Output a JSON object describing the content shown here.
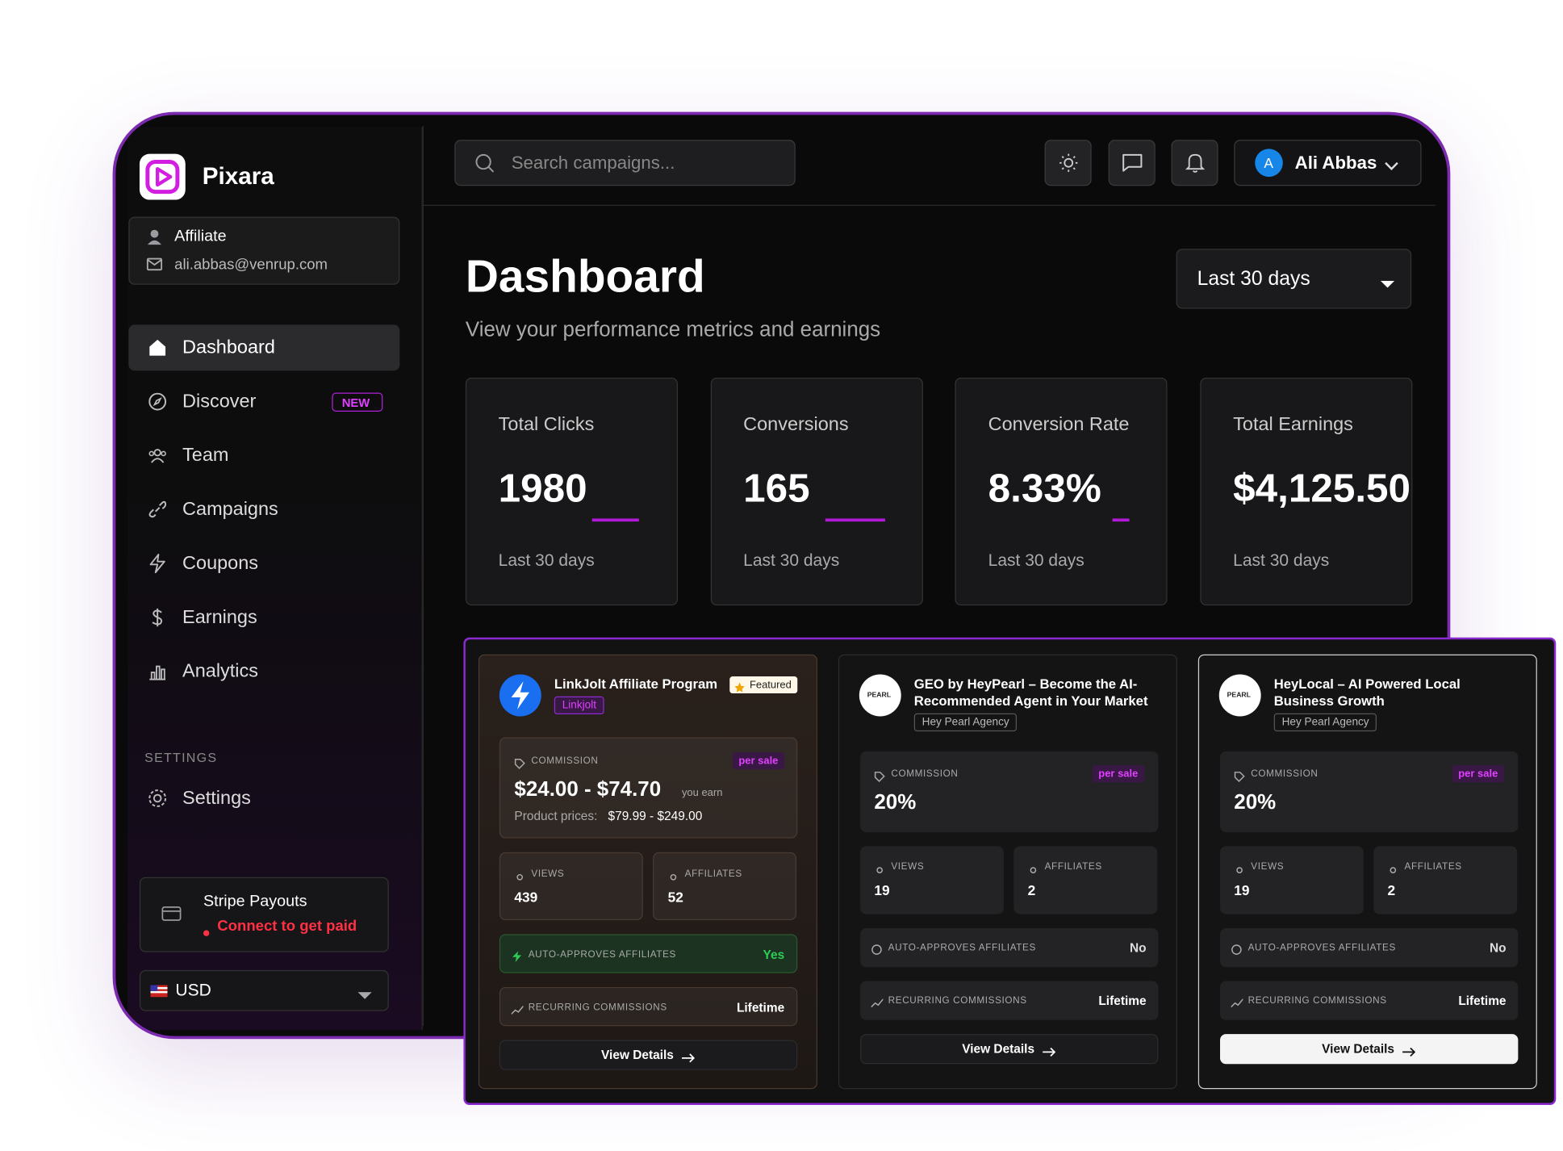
{
  "brand": "Pixara",
  "account": {
    "role": "Affiliate",
    "email": "ali.abbas@venrup.com"
  },
  "nav": [
    {
      "label": "Dashboard"
    },
    {
      "label": "Discover",
      "badge": "NEW"
    },
    {
      "label": "Team"
    },
    {
      "label": "Campaigns"
    },
    {
      "label": "Coupons"
    },
    {
      "label": "Earnings"
    },
    {
      "label": "Analytics"
    }
  ],
  "settings_heading": "SETTINGS",
  "settings": "Settings",
  "payouts": {
    "title": "Stripe Payouts",
    "status": "Connect to get paid"
  },
  "currency": "USD",
  "search_placeholder": "Search campaigns...",
  "user": {
    "initial": "A",
    "name": "Ali Abbas"
  },
  "page": {
    "title": "Dashboard",
    "subtitle": "View your performance metrics and earnings",
    "range": "Last 30 days"
  },
  "stats": [
    {
      "label": "Total Clicks",
      "value": "1980",
      "period": "Last 30 days"
    },
    {
      "label": "Conversions",
      "value": "165",
      "period": "Last 30 days"
    },
    {
      "label": "Conversion Rate",
      "value": "8.33%",
      "period": "Last 30 days"
    },
    {
      "label": "Total Earnings",
      "value": "$4,125.50",
      "period": "Last 30 days"
    }
  ],
  "campaigns": [
    {
      "name": "LinkJolt Affiliate Program",
      "badge": "Featured",
      "tag": "Linkjolt",
      "commission_label": "COMMISSION",
      "per": "per sale",
      "commission": "$24.00 - $74.70",
      "earn_note": "you earn",
      "prices_label": "Product prices:",
      "prices": "$79.99 - $249.00",
      "views_label": "VIEWS",
      "views": "439",
      "affiliates_label": "AFFILIATES",
      "affiliates": "52",
      "auto_label": "AUTO-APPROVES AFFILIATES",
      "auto": "Yes",
      "recurring_label": "RECURRING COMMISSIONS",
      "recurring": "Lifetime",
      "cta": "View Details"
    },
    {
      "name": "GEO by HeyPearl – Become the AI-Recommended Agent in Your Market",
      "logo_text": "PEARL",
      "tag": "Hey Pearl Agency",
      "commission_label": "COMMISSION",
      "per": "per sale",
      "commission": "20%",
      "views_label": "VIEWS",
      "views": "19",
      "affiliates_label": "AFFILIATES",
      "affiliates": "2",
      "auto_label": "AUTO-APPROVES AFFILIATES",
      "auto": "No",
      "recurring_label": "RECURRING COMMISSIONS",
      "recurring": "Lifetime",
      "cta": "View Details"
    },
    {
      "name": "HeyLocal – AI Powered Local Business Growth",
      "logo_text": "PEARL",
      "tag": "Hey Pearl Agency",
      "commission_label": "COMMISSION",
      "per": "per sale",
      "commission": "20%",
      "views_label": "VIEWS",
      "views": "19",
      "affiliates_label": "AFFILIATES",
      "affiliates": "2",
      "auto_label": "AUTO-APPROVES AFFILIATES",
      "auto": "No",
      "recurring_label": "RECURRING COMMISSIONS",
      "recurring": "Lifetime",
      "cta": "View Details"
    }
  ]
}
